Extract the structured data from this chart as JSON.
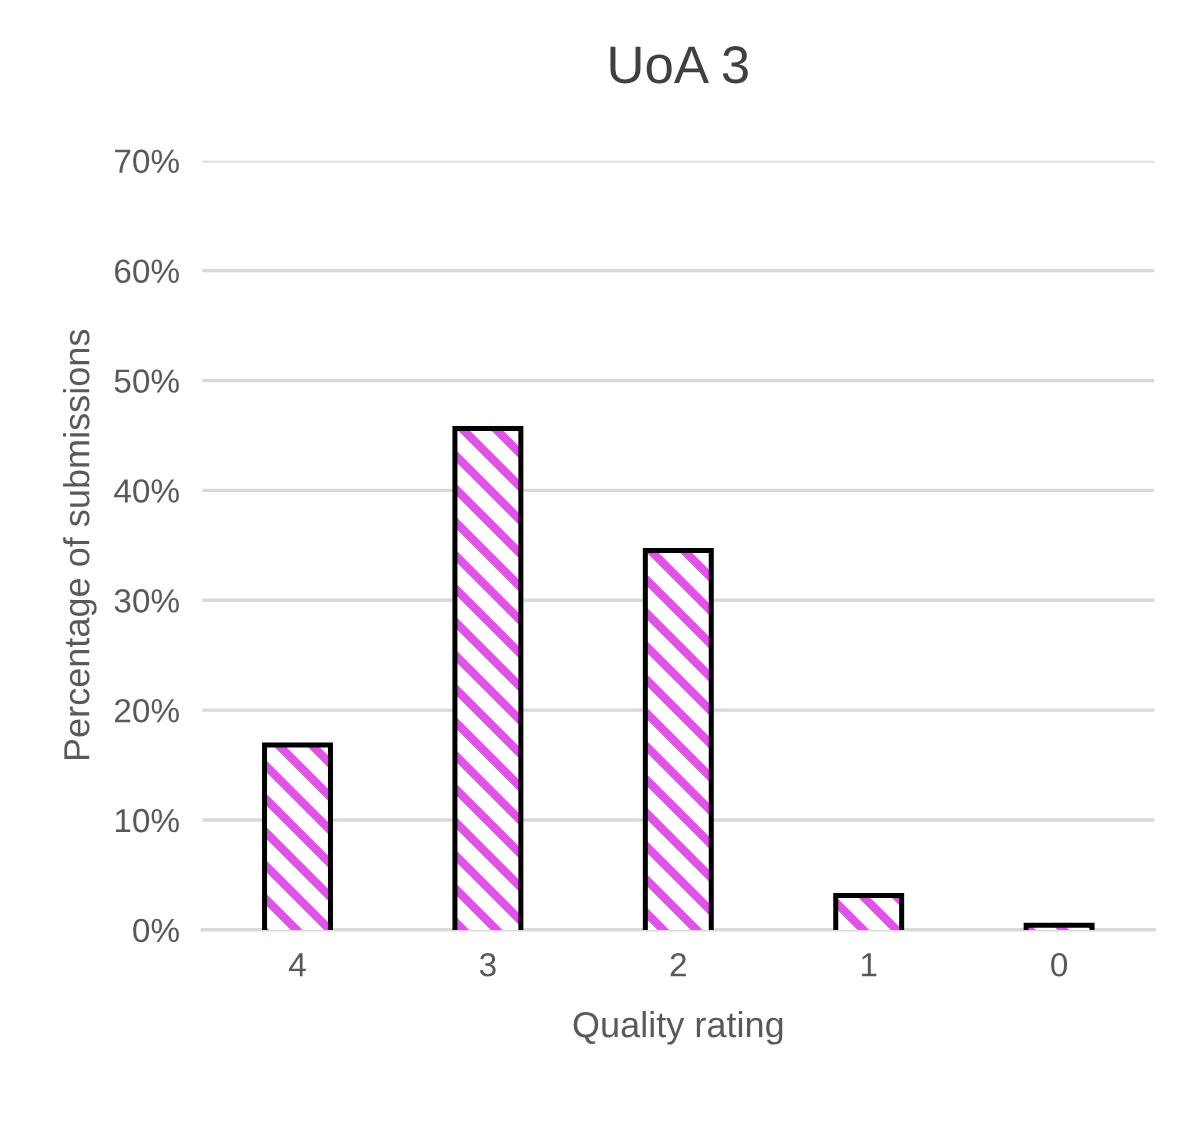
{
  "chart_data": {
    "type": "bar",
    "title": "UoA 3",
    "xlabel": "Quality rating",
    "ylabel": "Percentage of submissions",
    "categories": [
      "4",
      "3",
      "2",
      "1",
      "0"
    ],
    "values": [
      16.6,
      45.4,
      34.3,
      2.9,
      0.2
    ],
    "color": "#e052e8",
    "ylim": [
      0,
      70
    ],
    "yticks": [
      {
        "value": 0,
        "label": "0%"
      },
      {
        "value": 10,
        "label": "10%"
      },
      {
        "value": 20,
        "label": "20%"
      },
      {
        "value": 30,
        "label": "30%"
      },
      {
        "value": 40,
        "label": "40%"
      },
      {
        "value": 50,
        "label": "50%"
      },
      {
        "value": 60,
        "label": "60%"
      },
      {
        "value": 70,
        "label": "70%"
      }
    ],
    "grid": "y",
    "legend": false
  }
}
